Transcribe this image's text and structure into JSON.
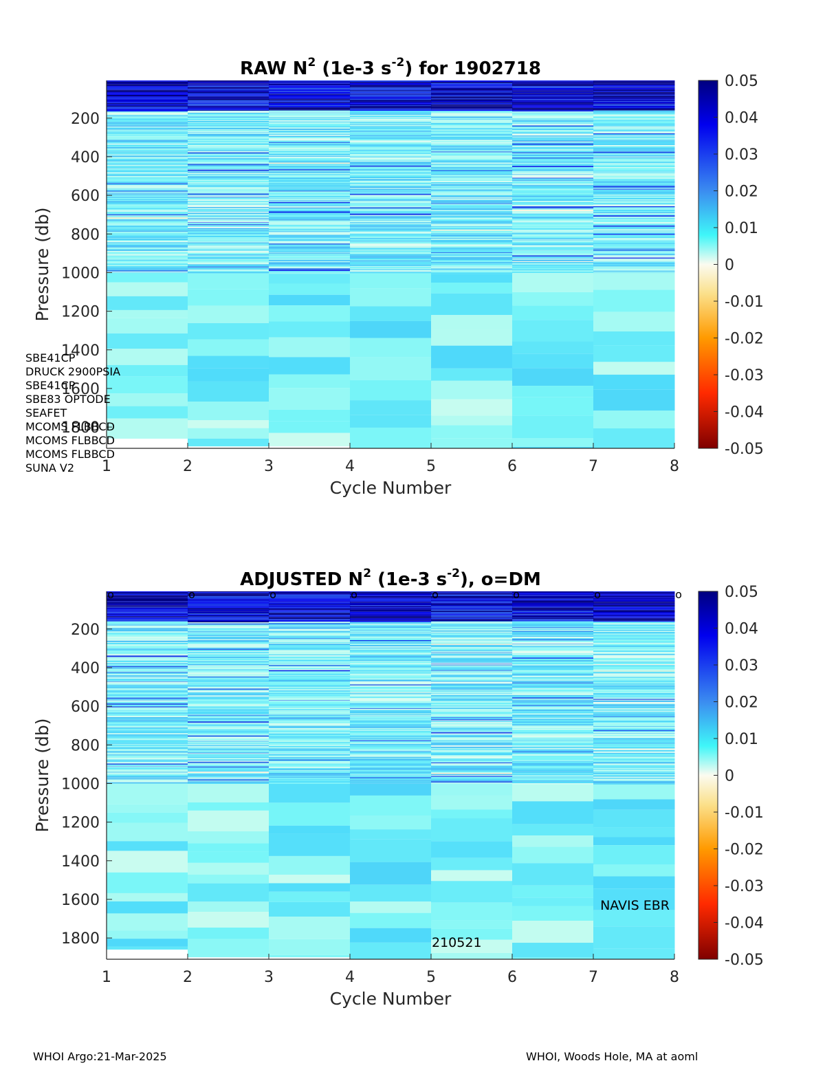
{
  "chart_data": [
    {
      "type": "heatmap",
      "title_parts": [
        "RAW N",
        "2",
        " (1e-3 s",
        "-2",
        ") for 1902718"
      ],
      "xlabel": "Cycle Number",
      "ylabel": "Pressure (db)",
      "x_ticks": [
        "1",
        "2",
        "3",
        "4",
        "5",
        "6",
        "7",
        "8"
      ],
      "y_ticks": [
        "200",
        "400",
        "600",
        "800",
        "1000",
        "1200",
        "1400",
        "1600",
        "1800"
      ],
      "xlim": [
        1,
        8
      ],
      "ylim": [
        5,
        1910
      ],
      "y_reversed": true,
      "colorbar": {
        "ticks": [
          "0.05",
          "0.04",
          "0.03",
          "0.02",
          "0.01",
          "0",
          "-0.01",
          "-0.02",
          "-0.03",
          "-0.04",
          "-0.05"
        ],
        "range": [
          -0.05,
          0.05
        ]
      },
      "max_pressure": [
        1860,
        1900,
        1900,
        1910,
        1910,
        1910,
        1910
      ],
      "sensor_list": [
        "SBE41CP",
        "DRUCK 2900PSIA",
        "SBE41CP",
        "SBE83 OPTODE",
        "SEAFET",
        "MCOMS FLBBCD",
        "MCOMS FLBBCD",
        "MCOMS FLBBCD",
        "SUNA V2"
      ],
      "dm_markers": []
    },
    {
      "type": "heatmap",
      "title_parts": [
        "ADJUSTED N",
        "2",
        " (1e-3 s",
        "-2",
        "), o=DM"
      ],
      "xlabel": "Cycle Number",
      "ylabel": "Pressure (db)",
      "x_ticks": [
        "1",
        "2",
        "3",
        "4",
        "5",
        "6",
        "7",
        "8"
      ],
      "y_ticks": [
        "200",
        "400",
        "600",
        "800",
        "1000",
        "1200",
        "1400",
        "1600",
        "1800"
      ],
      "xlim": [
        1,
        8
      ],
      "ylim": [
        5,
        1910
      ],
      "y_reversed": true,
      "colorbar": {
        "ticks": [
          "0.05",
          "0.04",
          "0.03",
          "0.02",
          "0.01",
          "0",
          "-0.01",
          "-0.02",
          "-0.03",
          "-0.04",
          "-0.05"
        ],
        "range": [
          -0.05,
          0.05
        ]
      },
      "max_pressure": [
        1860,
        1900,
        1900,
        1910,
        1910,
        1910,
        1910
      ],
      "dm_markers": [
        "o",
        "o",
        "o",
        "o",
        "o",
        "o",
        "o",
        "o"
      ],
      "annotations": [
        "NAVIS EBR",
        "210521"
      ]
    }
  ],
  "footer": {
    "left": "WHOI Argo:21-Mar-2025",
    "right": "WHOI, Woods Hole, MA at aoml"
  }
}
